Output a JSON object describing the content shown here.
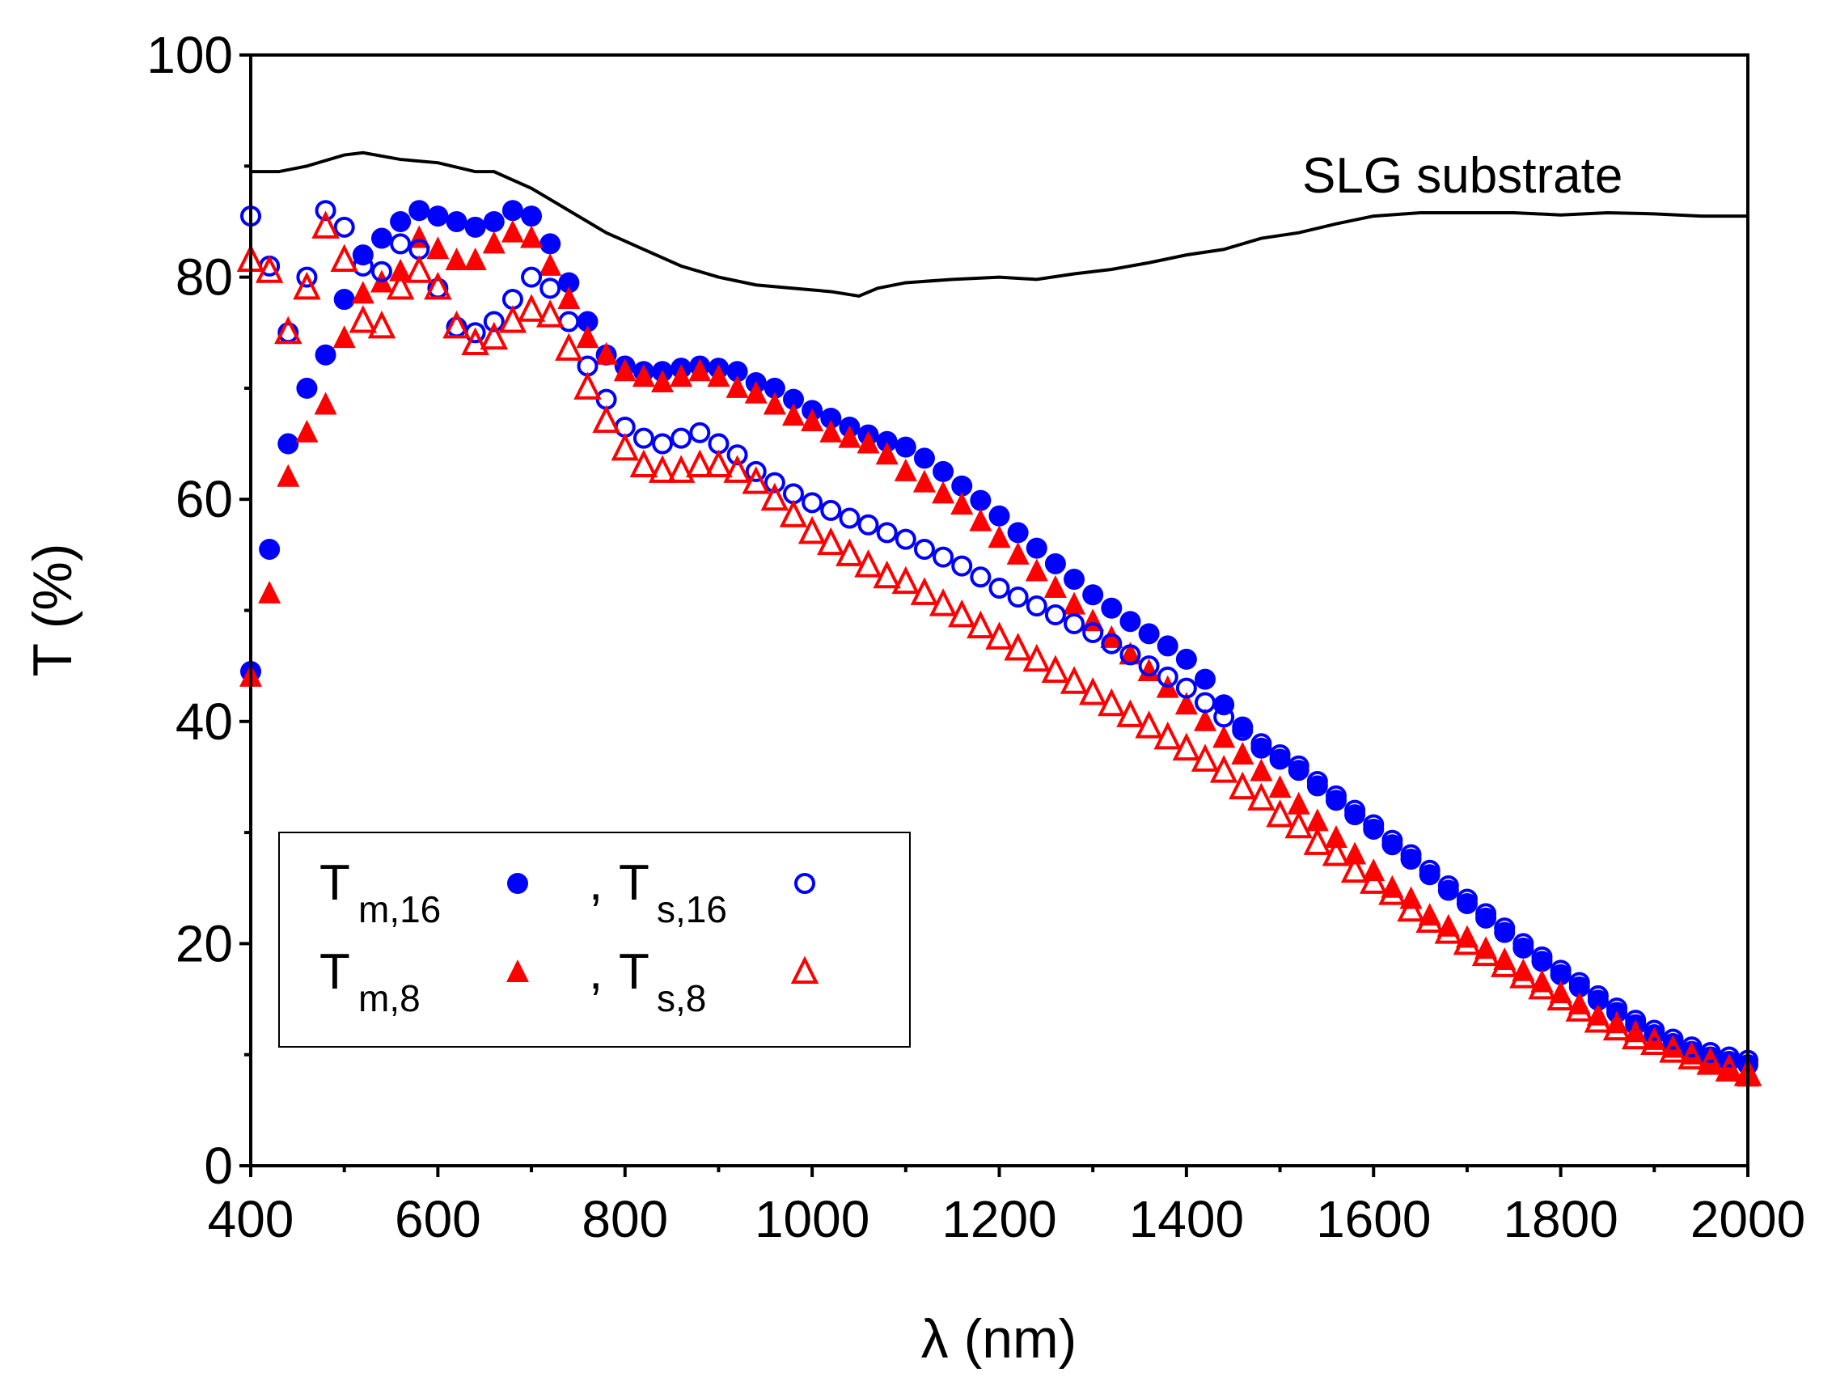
{
  "chart_data": {
    "type": "scatter",
    "title": "",
    "xlabel": "λ (nm)",
    "ylabel": "T (%)",
    "xlim": [
      400,
      2000
    ],
    "ylim": [
      0,
      100
    ],
    "xticks": [
      400,
      600,
      800,
      1000,
      1200,
      1400,
      1600,
      1800,
      2000
    ],
    "yticks": [
      0,
      20,
      40,
      60,
      80,
      100
    ],
    "grid": false,
    "legend_position": "bottom-left",
    "annotation": "SLG substrate",
    "x": [
      400,
      420,
      440,
      460,
      480,
      500,
      520,
      540,
      560,
      580,
      600,
      620,
      640,
      660,
      680,
      700,
      720,
      740,
      760,
      780,
      800,
      820,
      840,
      860,
      880,
      900,
      920,
      940,
      960,
      980,
      1000,
      1020,
      1040,
      1060,
      1080,
      1100,
      1120,
      1140,
      1160,
      1180,
      1200,
      1220,
      1240,
      1260,
      1280,
      1300,
      1320,
      1340,
      1360,
      1380,
      1400,
      1420,
      1440,
      1460,
      1480,
      1500,
      1520,
      1540,
      1560,
      1580,
      1600,
      1620,
      1640,
      1660,
      1680,
      1700,
      1720,
      1740,
      1760,
      1780,
      1800,
      1820,
      1840,
      1860,
      1880,
      1900,
      1920,
      1940,
      1960,
      1980,
      2000
    ],
    "series": [
      {
        "name": "Tm,16",
        "main": "T",
        "sub": "m,16",
        "marker": "circle-filled",
        "color": "#0000ff",
        "values": [
          44.5,
          55.5,
          65,
          70,
          73,
          78,
          82,
          83.5,
          85,
          86,
          85.5,
          85,
          84.5,
          85,
          86,
          85.5,
          83,
          79.5,
          76,
          73,
          72,
          71.5,
          71.5,
          71.8,
          72,
          71.8,
          71.5,
          70.5,
          70,
          69,
          68,
          67.3,
          66.5,
          65.8,
          65.2,
          64.7,
          63.7,
          62.5,
          61.2,
          59.9,
          58.5,
          57,
          55.6,
          54.2,
          52.8,
          51.4,
          50.2,
          49,
          47.9,
          46.8,
          45.6,
          43.8,
          41.5,
          39.5,
          37.6,
          36.6,
          35.6,
          34.2,
          32.9,
          31.6,
          30.3,
          28.9,
          27.6,
          26.2,
          24.8,
          23.6,
          22.3,
          21,
          19.6,
          18.4,
          17.2,
          16.1,
          14.9,
          13.8,
          12.7,
          11.8,
          11,
          10.3,
          9.8,
          9.4,
          9.1
        ]
      },
      {
        "name": "Ts,16",
        "main": "T",
        "sub": "s,16",
        "marker": "circle-open",
        "color": "#0000ff",
        "values": [
          85.5,
          81,
          75,
          80,
          86,
          84.5,
          81,
          80.5,
          83,
          82.5,
          79,
          75.5,
          75,
          76,
          78,
          80,
          79,
          76,
          72,
          69,
          66.5,
          65.5,
          65,
          65.5,
          66,
          65,
          64,
          62.5,
          61.5,
          60.5,
          59.7,
          59,
          58.3,
          57.7,
          57,
          56.4,
          55.5,
          54.8,
          54,
          53,
          52,
          51.2,
          50.4,
          49.6,
          48.8,
          48,
          47,
          46,
          45,
          44,
          43,
          41.7,
          40.4,
          39.2,
          38,
          37,
          36,
          34.6,
          33.3,
          32,
          30.7,
          29.3,
          28,
          26.6,
          25.2,
          24,
          22.7,
          21.4,
          20,
          18.8,
          17.6,
          16.5,
          15.3,
          14.2,
          13.1,
          12.2,
          11.4,
          10.7,
          10.2,
          9.8,
          9.5
        ]
      },
      {
        "name": "Tm,8",
        "main": "T",
        "sub": "m,8",
        "marker": "triangle-filled",
        "color": "#ff0000",
        "values": [
          44,
          51.5,
          62,
          66,
          68.5,
          74.5,
          78.5,
          79.5,
          80.5,
          83.5,
          82.5,
          81.5,
          81.5,
          83,
          84,
          83.5,
          81,
          78,
          74.5,
          73,
          71.5,
          71,
          70.5,
          71,
          71.5,
          71,
          70,
          69.5,
          68.5,
          67.5,
          67,
          66,
          65.5,
          65,
          64,
          62.5,
          61.5,
          60.5,
          59.5,
          58,
          56.5,
          55,
          53.5,
          52,
          50.5,
          49,
          47.5,
          46,
          44.5,
          43,
          41.5,
          40,
          38.5,
          37,
          35.5,
          34,
          32.5,
          31,
          29.5,
          28,
          26.5,
          25,
          24,
          22.5,
          21.5,
          20.5,
          19.5,
          18.5,
          17.5,
          16.5,
          15.5,
          14.5,
          13.5,
          12.8,
          12,
          11.3,
          10.6,
          10,
          9.3,
          8.7,
          8
        ]
      },
      {
        "name": "Ts,8",
        "main": "T",
        "sub": "s,8",
        "marker": "triangle-open",
        "color": "#ff0000",
        "values": [
          81.5,
          80.5,
          75,
          79,
          84.5,
          81.5,
          76,
          75.5,
          79,
          80.5,
          79,
          75.5,
          74,
          74.5,
          76,
          77,
          76.5,
          73.5,
          70,
          67,
          64.5,
          63,
          62.5,
          62.5,
          63,
          63,
          62.5,
          61.5,
          60,
          58.5,
          57,
          56,
          55,
          54,
          53,
          52.5,
          51.5,
          50.5,
          49.5,
          48.5,
          47.5,
          46.5,
          45.5,
          44.5,
          43.5,
          42.5,
          41.5,
          40.5,
          39.5,
          38.5,
          37.5,
          36.5,
          35.5,
          34,
          33,
          31.5,
          30.5,
          29,
          28,
          26.5,
          25.5,
          24.5,
          23,
          22,
          21,
          20,
          19,
          18,
          17,
          16,
          15,
          14,
          13,
          12.3,
          11.5,
          11,
          10.3,
          9.7,
          9.2,
          8.6,
          8.2
        ]
      }
    ],
    "substrate_line": {
      "name": "SLG substrate",
      "color": "#000000",
      "x": [
        400,
        430,
        460,
        500,
        520,
        560,
        600,
        640,
        660,
        700,
        740,
        780,
        820,
        860,
        900,
        940,
        980,
        1020,
        1050,
        1070,
        1100,
        1150,
        1200,
        1240,
        1280,
        1320,
        1360,
        1400,
        1440,
        1480,
        1520,
        1560,
        1600,
        1650,
        1700,
        1750,
        1800,
        1850,
        1900,
        1950,
        2000
      ],
      "y": [
        89.5,
        89.5,
        90,
        91,
        91.2,
        90.6,
        90.3,
        89.5,
        89.5,
        88,
        86,
        84,
        82.5,
        81,
        80,
        79.3,
        79,
        78.7,
        78.3,
        79,
        79.5,
        79.8,
        80,
        79.8,
        80.3,
        80.7,
        81.3,
        82,
        82.5,
        83.5,
        84,
        84.8,
        85.5,
        85.8,
        85.8,
        85.8,
        85.6,
        85.8,
        85.7,
        85.5,
        85.5
      ]
    },
    "legend_separator": ","
  }
}
